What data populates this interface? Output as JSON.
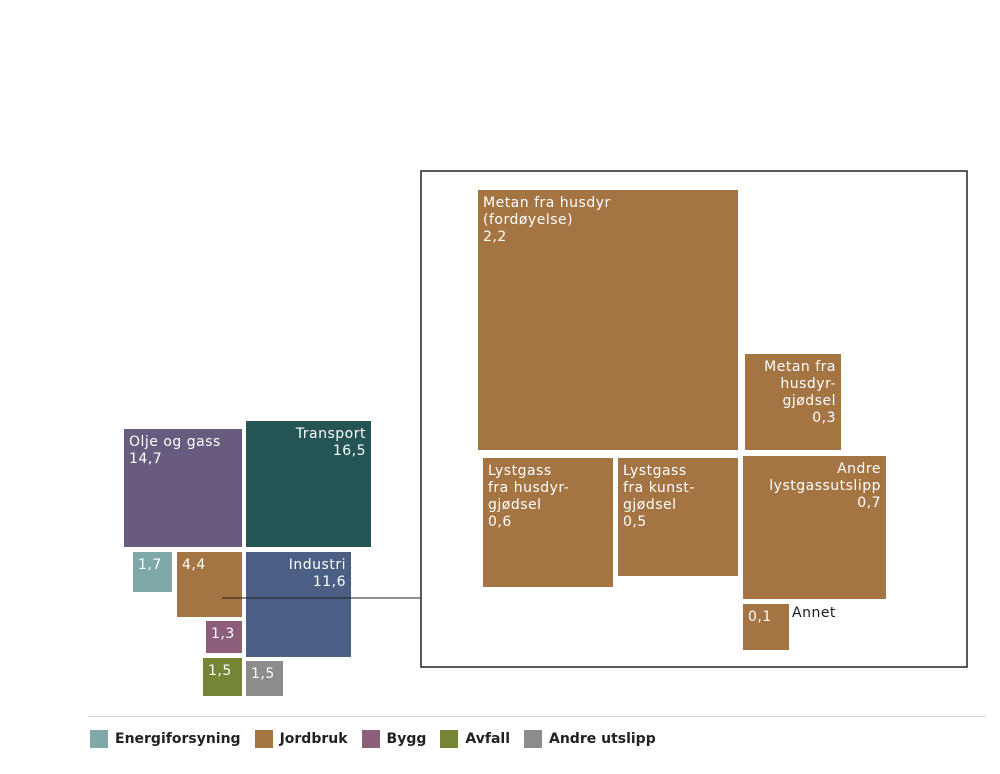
{
  "colors": {
    "energi": "#7fa9a8",
    "jordbruk": "#a47443",
    "bygg": "#8c5e7a",
    "avfall": "#748536",
    "andre": "#8c8c8c",
    "olje": "#685b7f",
    "transport": "#245454",
    "industri": "#4b5f84",
    "frame": "#222222"
  },
  "legend": [
    {
      "label": "Energiforsyning",
      "color_key": "energi"
    },
    {
      "label": "Jordbruk",
      "color_key": "jordbruk"
    },
    {
      "label": "Bygg",
      "color_key": "bygg"
    },
    {
      "label": "Avfall",
      "color_key": "avfall"
    },
    {
      "label": "Andre utslipp",
      "color_key": "andre"
    }
  ],
  "chart_data": [
    {
      "type": "treemap",
      "items": [
        {
          "id": "olje",
          "lines": [
            "Olje og gass",
            "14,7"
          ],
          "value": 14.7
        },
        {
          "id": "transport",
          "lines": [
            "Transport",
            "16,5"
          ],
          "value": 16.5
        },
        {
          "id": "energi",
          "lines": [
            "1,7"
          ],
          "value": 1.7
        },
        {
          "id": "jordbruk",
          "lines": [
            "4,4"
          ],
          "value": 4.4
        },
        {
          "id": "industri",
          "lines": [
            "Industri",
            "11,6"
          ],
          "value": 11.6
        },
        {
          "id": "bygg",
          "lines": [
            "1,3"
          ],
          "value": 1.3
        },
        {
          "id": "avfall",
          "lines": [
            "1,5"
          ],
          "value": 1.5
        },
        {
          "id": "andre",
          "lines": [
            "1,5"
          ],
          "value": 1.5
        }
      ]
    },
    {
      "type": "treemap",
      "items": [
        {
          "id": "metan-fordoyelse",
          "lines": [
            "Metan fra husdyr",
            "(fordøyelse)",
            "2,2"
          ],
          "value": 2.2
        },
        {
          "id": "metan-gjodsel",
          "lines": [
            "Metan fra",
            "husdyr-",
            "gjødsel",
            "0,3"
          ],
          "value": 0.3
        },
        {
          "id": "lystgass-husdyr",
          "lines": [
            "Lystgass",
            "fra husdyr-",
            "gjødsel",
            "0,6"
          ],
          "value": 0.6
        },
        {
          "id": "lystgass-kunst",
          "lines": [
            "Lystgass",
            "fra kunst-",
            "gjødsel",
            "0,5"
          ],
          "value": 0.5
        },
        {
          "id": "andre-lystgass",
          "lines": [
            "Andre",
            "lystgassutslipp",
            "0,7"
          ],
          "value": 0.7
        },
        {
          "id": "annet",
          "lines": [
            "0,1"
          ],
          "value": 0.1,
          "outside_label": "Annet"
        }
      ]
    }
  ]
}
